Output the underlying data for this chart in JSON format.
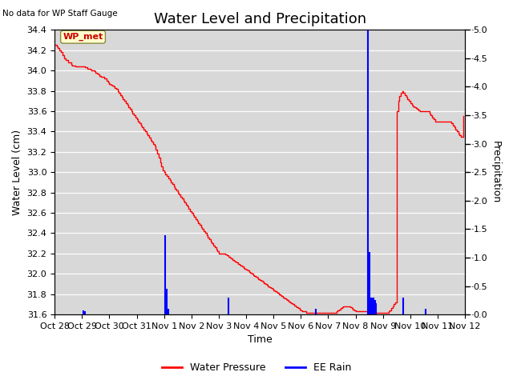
{
  "title": "Water Level and Precipitation",
  "subtitle": "No data for WP Staff Gauge",
  "ylabel_left": "Water Level (cm)",
  "ylabel_right": "Precipitation",
  "xlabel": "Time",
  "ylim_left": [
    31.6,
    34.4
  ],
  "ylim_right": [
    0.0,
    5.0
  ],
  "yticks_left": [
    31.6,
    31.8,
    32.0,
    32.2,
    32.4,
    32.6,
    32.8,
    33.0,
    33.2,
    33.4,
    33.6,
    33.8,
    34.0,
    34.2,
    34.4
  ],
  "yticks_right": [
    0.0,
    0.5,
    1.0,
    1.5,
    2.0,
    2.5,
    3.0,
    3.5,
    4.0,
    4.5,
    5.0
  ],
  "xtick_labels": [
    "Oct 28",
    "Oct 29",
    "Oct 30",
    "Oct 31",
    "Nov 1",
    "Nov 2",
    "Nov 3",
    "Nov 4",
    "Nov 5",
    "Nov 6",
    "Nov 7",
    "Nov 8",
    "Nov 9",
    "Nov 10",
    "Nov 11",
    "Nov 12"
  ],
  "water_pressure_color": "#ff0000",
  "ee_rain_color": "#0000ff",
  "bg_color": "#d8d8d8",
  "wp_x": [
    0.0,
    0.05,
    0.08,
    0.12,
    0.18,
    0.22,
    0.28,
    0.35,
    0.4,
    0.5,
    0.6,
    0.65,
    0.7,
    0.75,
    0.8,
    0.85,
    0.9,
    0.95,
    1.0,
    1.05,
    1.1,
    1.15,
    1.2,
    1.25,
    1.3,
    1.35,
    1.4,
    1.45,
    1.5,
    1.55,
    1.6,
    1.65,
    1.7,
    1.8,
    1.9,
    1.95,
    2.0,
    2.05,
    2.1,
    2.15,
    2.2,
    2.25,
    2.3,
    2.35,
    2.4,
    2.45,
    2.5,
    2.55,
    2.6,
    2.65,
    2.7,
    2.75,
    2.8,
    2.85,
    2.9,
    2.95,
    3.0,
    3.05,
    3.1,
    3.15,
    3.2,
    3.25,
    3.3,
    3.35,
    3.4,
    3.45,
    3.5,
    3.55,
    3.6,
    3.65,
    3.7,
    3.75,
    3.8,
    3.85,
    3.9,
    3.95,
    4.0,
    4.05,
    4.1,
    4.15,
    4.2,
    4.25,
    4.3,
    4.35,
    4.4,
    4.45,
    4.5,
    4.55,
    4.6,
    4.65,
    4.7,
    4.75,
    4.8,
    4.85,
    4.9,
    4.95,
    5.0,
    5.05,
    5.1,
    5.15,
    5.2,
    5.25,
    5.3,
    5.35,
    5.4,
    5.45,
    5.5,
    5.55,
    5.6,
    5.65,
    5.7,
    5.75,
    5.8,
    5.85,
    5.9,
    5.95,
    6.0,
    6.05,
    6.1,
    6.15,
    6.2,
    6.25,
    6.3,
    6.35,
    6.4,
    6.45,
    6.5,
    6.55,
    6.6,
    6.65,
    6.7,
    6.75,
    6.8,
    6.85,
    6.9,
    6.95,
    7.0,
    7.05,
    7.1,
    7.15,
    7.2,
    7.25,
    7.3,
    7.35,
    7.4,
    7.45,
    7.5,
    7.55,
    7.6,
    7.65,
    7.7,
    7.75,
    7.8,
    7.85,
    7.9,
    7.95,
    8.0,
    8.05,
    8.1,
    8.15,
    8.2,
    8.25,
    8.3,
    8.35,
    8.4,
    8.45,
    8.5,
    8.55,
    8.6,
    8.65,
    8.7,
    8.75,
    8.8,
    8.85,
    8.9,
    8.95,
    9.0,
    9.05,
    9.1,
    9.15,
    9.2,
    9.25,
    9.3,
    9.35,
    9.4,
    9.45,
    9.5,
    9.55,
    9.6,
    9.65,
    9.7,
    9.75,
    9.8,
    9.85,
    9.9,
    9.95,
    10.0,
    10.05,
    10.1,
    10.15,
    10.2,
    10.25,
    10.3,
    10.35,
    10.4,
    10.45,
    10.5,
    10.55,
    10.6,
    10.65,
    10.7,
    10.75,
    10.8,
    10.85,
    10.9,
    10.95,
    11.0,
    11.05,
    11.1,
    11.15,
    11.2,
    11.25,
    11.3,
    11.35,
    11.4,
    11.45,
    11.5,
    11.55,
    11.6,
    11.65,
    11.7,
    11.75,
    11.8,
    11.85,
    11.9,
    11.95,
    12.0,
    12.05,
    12.1,
    12.15,
    12.2,
    12.25,
    12.3,
    12.35,
    12.4,
    12.45,
    12.5,
    12.55,
    12.6,
    12.65,
    12.7,
    12.75,
    12.8,
    12.85,
    12.9,
    12.95,
    13.0,
    13.05,
    13.1,
    13.15,
    13.2,
    13.25,
    13.3,
    13.35,
    13.4,
    13.45,
    13.5,
    13.55,
    13.6,
    13.65,
    13.7,
    13.75,
    13.8,
    13.85,
    13.9,
    13.95,
    14.0,
    14.05,
    14.1,
    14.15,
    14.2,
    14.25,
    14.3,
    14.35,
    14.4,
    14.45,
    14.5,
    14.55,
    14.6,
    14.65,
    14.7,
    14.75,
    14.8,
    14.85,
    14.9,
    14.95
  ],
  "wp_y": [
    34.25,
    34.25,
    34.24,
    34.22,
    34.2,
    34.18,
    34.15,
    34.12,
    34.1,
    34.08,
    34.06,
    34.05,
    34.05,
    34.04,
    34.04,
    34.04,
    34.04,
    34.04,
    34.04,
    34.04,
    34.03,
    34.03,
    34.02,
    34.02,
    34.01,
    34.0,
    34.0,
    33.99,
    33.98,
    33.97,
    33.96,
    33.95,
    33.94,
    33.92,
    33.9,
    33.88,
    33.87,
    33.86,
    33.85,
    33.84,
    33.83,
    33.82,
    33.8,
    33.78,
    33.76,
    33.74,
    33.72,
    33.7,
    33.68,
    33.66,
    33.64,
    33.62,
    33.6,
    33.58,
    33.56,
    33.54,
    33.52,
    33.5,
    33.48,
    33.46,
    33.44,
    33.42,
    33.4,
    33.38,
    33.36,
    33.34,
    33.32,
    33.3,
    33.28,
    33.26,
    33.22,
    33.18,
    33.14,
    33.1,
    33.06,
    33.02,
    33.0,
    32.98,
    32.96,
    32.94,
    32.92,
    32.9,
    32.88,
    32.86,
    32.84,
    32.82,
    32.8,
    32.78,
    32.76,
    32.74,
    32.72,
    32.7,
    32.68,
    32.66,
    32.64,
    32.62,
    32.6,
    32.58,
    32.56,
    32.54,
    32.52,
    32.5,
    32.48,
    32.46,
    32.44,
    32.42,
    32.4,
    32.38,
    32.36,
    32.34,
    32.32,
    32.3,
    32.28,
    32.26,
    32.24,
    32.22,
    32.2,
    32.2,
    32.2,
    32.2,
    32.2,
    32.19,
    32.18,
    32.17,
    32.16,
    32.15,
    32.14,
    32.13,
    32.12,
    32.11,
    32.1,
    32.09,
    32.08,
    32.07,
    32.06,
    32.05,
    32.04,
    32.03,
    32.02,
    32.01,
    32.0,
    31.99,
    31.98,
    31.97,
    31.96,
    31.95,
    31.94,
    31.93,
    31.92,
    31.91,
    31.9,
    31.89,
    31.88,
    31.87,
    31.86,
    31.85,
    31.84,
    31.83,
    31.82,
    31.81,
    31.8,
    31.79,
    31.78,
    31.77,
    31.76,
    31.75,
    31.74,
    31.73,
    31.72,
    31.71,
    31.7,
    31.69,
    31.68,
    31.67,
    31.66,
    31.65,
    31.64,
    31.63,
    31.63,
    31.63,
    31.62,
    31.62,
    31.62,
    31.62,
    31.62,
    31.62,
    31.62,
    31.62,
    31.62,
    31.62,
    31.62,
    31.62,
    31.62,
    31.62,
    31.62,
    31.62,
    31.62,
    31.62,
    31.62,
    31.62,
    31.62,
    31.62,
    31.63,
    31.64,
    31.65,
    31.66,
    31.67,
    31.68,
    31.68,
    31.68,
    31.68,
    31.68,
    31.67,
    31.66,
    31.65,
    31.64,
    31.63,
    31.63,
    31.63,
    31.63,
    31.63,
    31.63,
    31.63,
    31.63,
    31.63,
    31.62,
    31.62,
    31.62,
    31.62,
    31.62,
    31.62,
    31.62,
    31.62,
    31.62,
    31.62,
    31.62,
    31.62,
    31.62,
    31.62,
    31.62,
    31.63,
    31.64,
    31.66,
    31.68,
    31.7,
    31.72,
    33.6,
    33.7,
    33.75,
    33.78,
    33.8,
    33.78,
    33.76,
    33.74,
    33.72,
    33.7,
    33.68,
    33.66,
    33.65,
    33.64,
    33.63,
    33.62,
    33.61,
    33.6,
    33.6,
    33.6,
    33.6,
    33.6,
    33.6,
    33.6,
    33.58,
    33.56,
    33.54,
    33.52,
    33.5,
    33.5,
    33.5,
    33.5,
    33.5,
    33.5,
    33.5,
    33.5,
    33.5,
    33.5,
    33.5,
    33.5,
    33.48,
    33.46,
    33.44,
    33.42,
    33.4,
    33.38,
    33.36,
    33.35,
    33.35,
    33.55
  ],
  "rain_x": [
    1.05,
    1.1,
    4.05,
    4.1,
    4.15,
    6.35,
    9.55,
    11.45,
    11.5,
    11.52,
    11.55,
    11.6,
    11.65,
    11.7,
    11.75,
    12.75,
    13.55
  ],
  "rain_y": [
    0.07,
    0.06,
    1.4,
    0.45,
    0.1,
    0.3,
    0.1,
    5.0,
    1.1,
    0.35,
    0.3,
    0.3,
    0.3,
    0.25,
    0.2,
    0.3,
    0.1
  ],
  "title_fontsize": 13,
  "axis_fontsize": 9,
  "tick_fontsize": 8
}
